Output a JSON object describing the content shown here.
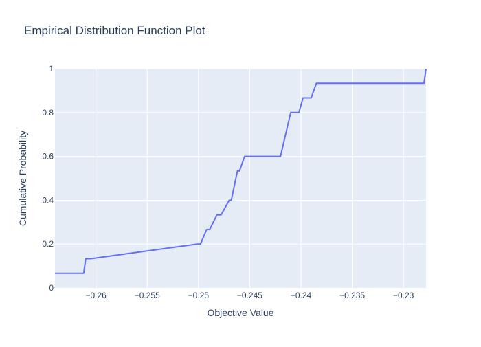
{
  "colors": {
    "plot_bg": "#e5ecf6",
    "grid": "#ffffff",
    "line": "#636efa",
    "text": "#2a3f5f"
  },
  "chart_data": {
    "type": "line",
    "line_shape": "linear-step",
    "title": "Empirical Distribution Function Plot",
    "xlabel": "Objective Value",
    "ylabel": "Cumulative Probability",
    "xlim": [
      -0.264,
      -0.2278
    ],
    "ylim": [
      0,
      1
    ],
    "grid": true,
    "x_ticks": [
      -0.26,
      -0.255,
      -0.25,
      -0.245,
      -0.24,
      -0.235,
      -0.23
    ],
    "x_tick_labels": [
      "−0.26",
      "−0.255",
      "−0.25",
      "−0.245",
      "−0.24",
      "−0.235",
      "−0.23"
    ],
    "y_ticks": [
      0,
      0.2,
      0.4,
      0.6,
      0.8,
      1
    ],
    "y_tick_labels": [
      "0",
      "0.2",
      "0.4",
      "0.6",
      "0.8",
      "1"
    ],
    "series": [
      {
        "x": [
          -0.264,
          -0.2612,
          -0.261,
          -0.2605,
          -0.2501,
          -0.2498,
          -0.2492,
          -0.2489,
          -0.2482,
          -0.2478,
          -0.247,
          -0.2468,
          -0.2462,
          -0.246,
          -0.2455,
          -0.2452,
          -0.242,
          -0.241,
          -0.2402,
          -0.2398,
          -0.239,
          -0.2385,
          -0.228,
          -0.2278
        ],
        "y": [
          0.0667,
          0.0667,
          0.1333,
          0.1333,
          0.2,
          0.2,
          0.2667,
          0.2667,
          0.3333,
          0.3333,
          0.4,
          0.4,
          0.5333,
          0.5333,
          0.6,
          0.6,
          0.6,
          0.8,
          0.8,
          0.8667,
          0.8667,
          0.9333,
          0.9333,
          1.0
        ]
      }
    ]
  }
}
